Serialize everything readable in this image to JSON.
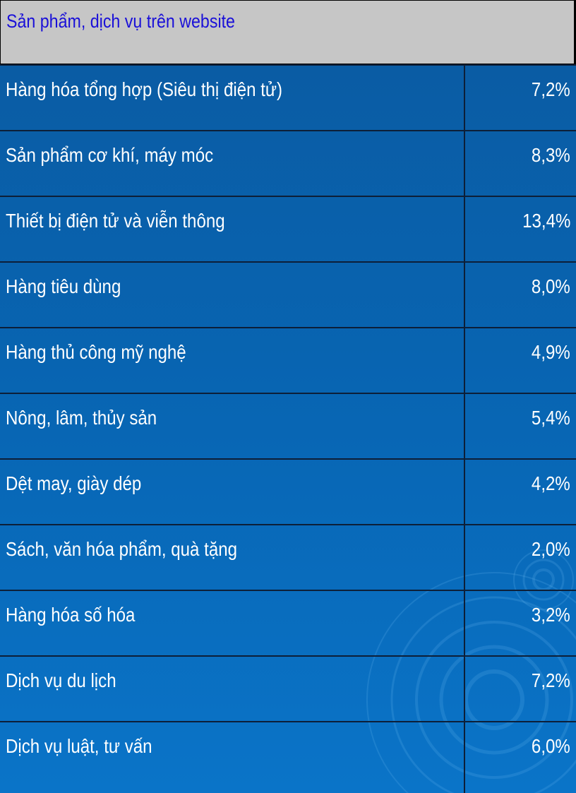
{
  "table": {
    "header": "Sản phẩm, dịch vụ trên website",
    "rows": [
      {
        "label": "Hàng hóa tổng hợp (Siêu thị điện tử)",
        "value": "7,2%"
      },
      {
        "label": "Sản phẩm cơ khí, máy móc",
        "value": "8,3%"
      },
      {
        "label": "Thiết bị điện tử và viễn thông",
        "value": "13,4%"
      },
      {
        "label": "Hàng tiêu dùng",
        "value": "8,0%"
      },
      {
        "label": "Hàng thủ công mỹ nghệ",
        "value": "4,9%"
      },
      {
        "label": "Nông, lâm, thủy sản",
        "value": "5,4%"
      },
      {
        "label": "Dệt may, giày dép",
        "value": "4,2%"
      },
      {
        "label": "Sách, văn hóa phẩm, quà tặng",
        "value": "2,0%"
      },
      {
        "label": "Hàng hóa số hóa",
        "value": "3,2%"
      },
      {
        "label": "Dịch vụ du lịch",
        "value": "7,2%"
      },
      {
        "label": "Dịch vụ luật, tư vấn",
        "value": "6,0%"
      }
    ]
  },
  "colors": {
    "header_bg": "#c6c6c6",
    "header_text": "#1a10d8",
    "body_bg": "#0866b4",
    "row_text": "#ffffff",
    "grid_line": "#0d1f38"
  }
}
